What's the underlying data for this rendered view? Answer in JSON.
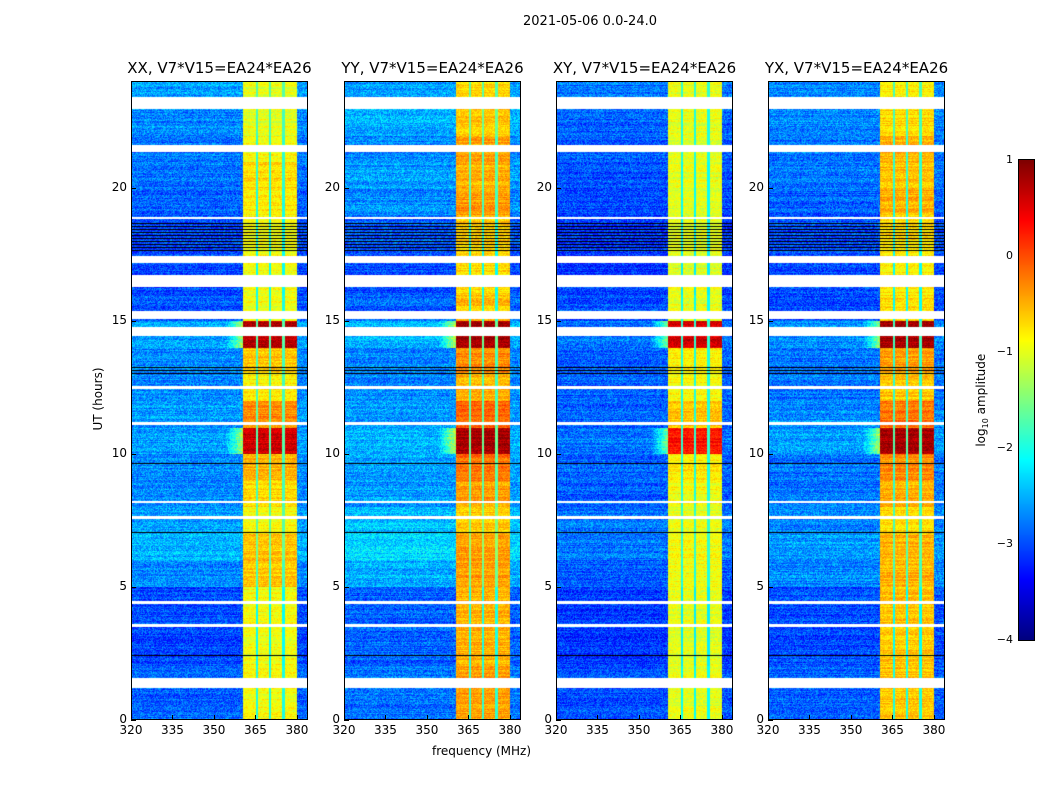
{
  "suptitle": "2021-05-06 0.0-24.0",
  "chart_data": {
    "type": "heatmap",
    "xlabel": "frequency (MHz)",
    "ylabel": "UT (hours)",
    "xlim": [
      320,
      384
    ],
    "ylim": [
      0,
      24
    ],
    "xticks": [
      "320",
      "335",
      "350",
      "365",
      "380"
    ],
    "xtick_values": [
      320,
      335,
      350,
      365,
      380
    ],
    "yticks": [
      "0",
      "5",
      "10",
      "15",
      "20"
    ],
    "ytick_values": [
      0,
      5,
      10,
      15,
      20
    ],
    "colorbar": {
      "label": "log10 amplitude",
      "label_main": "log",
      "label_sub": "10",
      "label_rest": " amplitude",
      "range": [
        -4,
        1
      ],
      "ticks": [
        "1",
        "0",
        "−1",
        "−2",
        "−3",
        "−4"
      ],
      "tick_values": [
        1,
        0,
        -1,
        -2,
        -3,
        -4
      ],
      "colormap": "jet"
    },
    "band_MHz": [
      360.5,
      380
    ],
    "band_dividers_MHz": [
      365.4,
      370.2,
      375.2
    ],
    "flagged_white_hours": [
      [
        23.0,
        23.45
      ],
      [
        21.4,
        21.65
      ],
      [
        18.85,
        18.95
      ],
      [
        17.2,
        17.45
      ],
      [
        16.3,
        16.75
      ],
      [
        15.1,
        15.4
      ],
      [
        14.45,
        14.8
      ],
      [
        12.45,
        12.55
      ],
      [
        11.1,
        11.2
      ],
      [
        8.15,
        8.25
      ],
      [
        7.55,
        7.65
      ],
      [
        4.35,
        4.45
      ],
      [
        3.5,
        3.6
      ],
      [
        1.2,
        1.55
      ]
    ],
    "flagged_black_hours": [
      [
        17.6,
        18.7
      ],
      [
        13.0,
        13.3
      ],
      [
        9.6,
        9.7
      ],
      [
        7.0,
        7.1
      ],
      [
        6.6,
        6.7
      ],
      [
        2.4,
        2.5
      ]
    ],
    "panels": [
      {
        "title": "XX, V7*V15=EA24*EA26",
        "background_log10": [
          -2.9,
          -2.9,
          -3.0,
          -3.0,
          -3.0,
          -2.7,
          -2.5,
          -2.6,
          -2.7,
          -2.7,
          -2.6,
          -2.6,
          -2.7,
          -2.7,
          -2.6,
          -2.9,
          -3.0,
          -3.0,
          -3.0,
          -2.9,
          -2.8,
          -2.8,
          -2.7,
          -2.6
        ],
        "band_log10": [
          -0.9,
          -0.9,
          -0.9,
          -0.9,
          -0.9,
          -0.6,
          -0.6,
          -0.9,
          -0.7,
          -0.5,
          0.6,
          -0.3,
          -0.8,
          -0.6,
          0.7,
          -0.9,
          -0.9,
          -0.9,
          -0.9,
          -0.8,
          -0.7,
          -0.9,
          -1.0,
          -1.0
        ]
      },
      {
        "title": "YY, V7*V15=EA24*EA26",
        "background_log10": [
          -2.8,
          -2.8,
          -2.9,
          -2.9,
          -2.9,
          -2.5,
          -2.3,
          -2.4,
          -2.6,
          -2.6,
          -2.5,
          -2.6,
          -2.7,
          -2.7,
          -2.5,
          -2.9,
          -3.0,
          -3.0,
          -2.9,
          -2.7,
          -2.6,
          -2.7,
          -2.5,
          -2.6
        ],
        "band_log10": [
          -0.4,
          -0.4,
          -0.5,
          -0.5,
          -0.5,
          -0.4,
          -0.4,
          -0.6,
          -0.4,
          -0.2,
          0.8,
          -0.1,
          -0.5,
          -0.3,
          0.8,
          -0.6,
          -0.7,
          -0.7,
          -0.6,
          -0.4,
          -0.5,
          -0.4,
          -0.6,
          -0.7
        ]
      },
      {
        "title": "XY, V7*V15=EA24*EA26",
        "background_log10": [
          -3.0,
          -3.0,
          -3.1,
          -3.1,
          -3.1,
          -2.9,
          -2.8,
          -2.8,
          -2.9,
          -2.9,
          -2.8,
          -2.9,
          -2.9,
          -2.9,
          -2.8,
          -3.0,
          -3.1,
          -3.1,
          -3.1,
          -3.0,
          -3.0,
          -2.9,
          -2.9,
          -2.8
        ],
        "band_log10": [
          -1.0,
          -1.0,
          -1.0,
          -1.0,
          -1.0,
          -0.9,
          -0.9,
          -1.0,
          -0.9,
          -0.8,
          0.3,
          -0.6,
          -0.9,
          -0.8,
          0.6,
          -1.0,
          -1.0,
          -1.0,
          -1.0,
          -1.0,
          -1.0,
          -1.0,
          -1.0,
          -1.0
        ]
      },
      {
        "title": "YX, V7*V15=EA24*EA26",
        "background_log10": [
          -2.9,
          -2.9,
          -3.0,
          -3.0,
          -3.0,
          -2.7,
          -2.6,
          -2.7,
          -2.8,
          -2.8,
          -2.6,
          -2.7,
          -2.8,
          -2.8,
          -2.7,
          -3.0,
          -3.0,
          -3.0,
          -3.0,
          -2.9,
          -2.8,
          -2.8,
          -2.7,
          -2.7
        ],
        "band_log10": [
          -0.6,
          -0.6,
          -0.6,
          -0.6,
          -0.6,
          -0.5,
          -0.5,
          -0.7,
          -0.5,
          -0.3,
          0.8,
          -0.2,
          -0.6,
          -0.4,
          0.8,
          -0.7,
          -0.8,
          -0.8,
          -0.7,
          -0.5,
          -0.6,
          -0.5,
          -0.7,
          -0.8
        ]
      }
    ]
  }
}
